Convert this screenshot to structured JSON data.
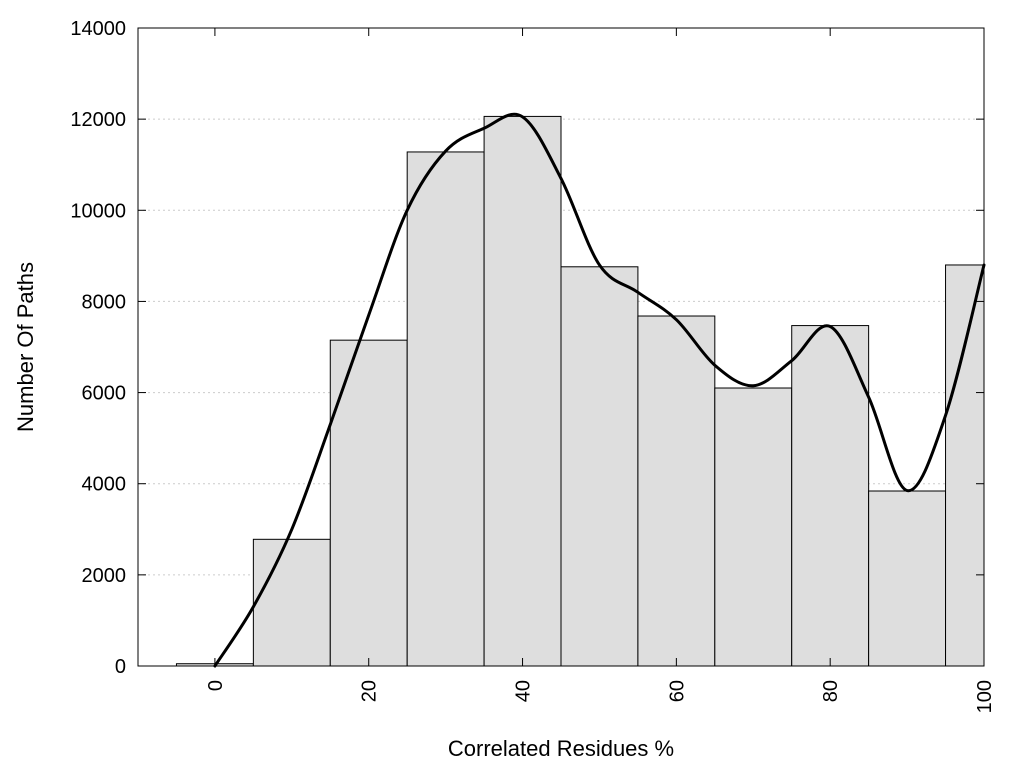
{
  "chart_data": {
    "type": "bar",
    "title": "",
    "xlabel": "Correlated Residues %",
    "ylabel": "Number Of Paths",
    "xlim": [
      -10,
      100
    ],
    "ylim": [
      0,
      14000
    ],
    "grid": "horizontal-dotted",
    "bars": {
      "x": [
        0,
        10,
        20,
        30,
        40,
        50,
        60,
        70,
        80,
        90,
        100
      ],
      "values": [
        50,
        2780,
        7150,
        11280,
        12060,
        8760,
        7680,
        6100,
        7470,
        3840,
        8800
      ]
    },
    "curve": {
      "x": [
        0,
        5,
        10,
        15,
        20,
        25,
        30,
        35,
        40,
        45,
        50,
        55,
        60,
        65,
        70,
        75,
        80,
        85,
        90,
        95,
        100
      ],
      "y": [
        0,
        1300,
        3000,
        5300,
        7700,
        10000,
        11300,
        11800,
        12050,
        10700,
        8800,
        8200,
        7600,
        6600,
        6150,
        6700,
        7450,
        5900,
        3850,
        5500,
        8800
      ]
    },
    "x_ticks": [
      "0",
      "20",
      "40",
      "60",
      "80",
      "100"
    ],
    "y_ticks": [
      "0",
      "2000",
      "4000",
      "6000",
      "8000",
      "10000",
      "12000",
      "14000"
    ],
    "colors": {
      "bar_fill": "#dedede",
      "bar_stroke": "#000000",
      "curve": "#000000",
      "grid": "#cccccc"
    }
  }
}
